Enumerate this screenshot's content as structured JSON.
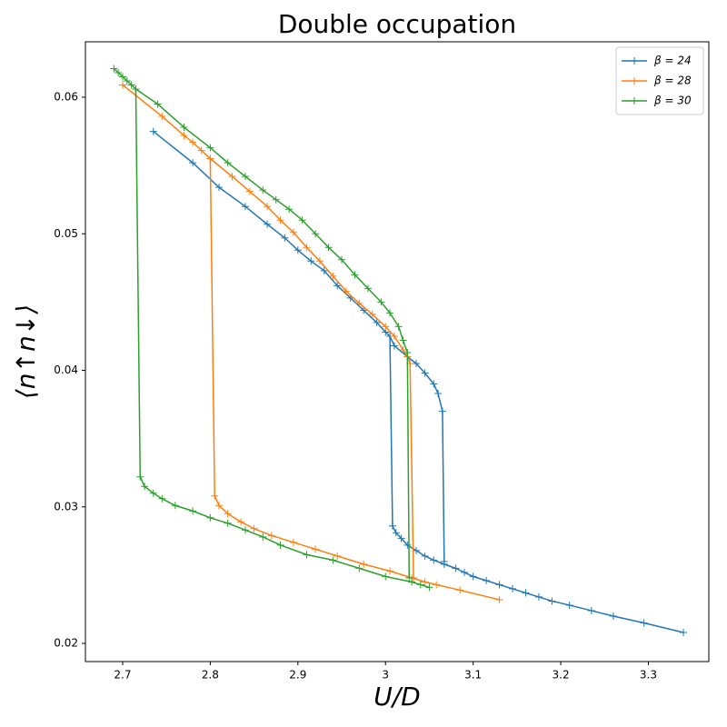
{
  "chart_data": {
    "type": "line",
    "title": "Double occupation",
    "x_label": "U/D",
    "y_label": "⟨n↑n↓⟩",
    "xlim": [
      2.6575,
      3.369
    ],
    "ylim": [
      0.01867,
      0.06406
    ],
    "xticks": [
      2.7,
      2.8,
      2.9,
      3.0,
      3.1,
      3.2,
      3.3
    ],
    "yticks": [
      0.02,
      0.03,
      0.04,
      0.05,
      0.06
    ],
    "legend": "upper right",
    "marker": "+",
    "series": [
      {
        "name": "β = 24",
        "color": "#1f77b4",
        "x": [
          3.34,
          3.295,
          3.26,
          3.235,
          3.21,
          3.19,
          3.175,
          3.16,
          3.145,
          3.13,
          3.115,
          3.1,
          3.09,
          3.08,
          3.067,
          3.055,
          3.045,
          3.035,
          3.025,
          3.018,
          3.012,
          3.008,
          3.005,
          3.0,
          2.99,
          2.975,
          2.96,
          2.945,
          2.93,
          2.915,
          2.9,
          2.885,
          2.865,
          2.84,
          2.81,
          2.78,
          2.735,
          null,
          3.005,
          3.01,
          3.025,
          3.035,
          3.045,
          3.055,
          3.06,
          3.065,
          3.067
        ],
        "values": [
          0.0208,
          0.0215,
          0.022,
          0.0224,
          0.0228,
          0.0231,
          0.0234,
          0.0237,
          0.024,
          0.0243,
          0.0246,
          0.0249,
          0.0252,
          0.0255,
          0.0258,
          0.0261,
          0.0264,
          0.0268,
          0.0272,
          0.0277,
          0.0281,
          0.0286,
          0.0425,
          0.0428,
          0.0435,
          0.0444,
          0.0453,
          0.0462,
          0.0473,
          0.048,
          0.0488,
          0.0497,
          0.0507,
          0.052,
          0.0534,
          0.0552,
          0.0575,
          null,
          0.0425,
          0.0418,
          0.041,
          0.0405,
          0.0398,
          0.039,
          0.0383,
          0.037,
          0.026
        ]
      },
      {
        "name": "β = 28",
        "color": "#ff7f0e",
        "x": [
          3.13,
          3.085,
          3.058,
          3.045,
          3.03,
          3.005,
          2.975,
          2.945,
          2.92,
          2.895,
          2.87,
          2.85,
          2.835,
          2.82,
          2.81,
          2.805,
          2.8,
          2.79,
          2.78,
          2.77,
          2.745,
          2.7,
          null,
          2.8,
          2.825,
          2.845,
          2.865,
          2.88,
          2.895,
          2.91,
          2.925,
          2.94,
          2.955,
          2.97,
          2.985,
          3.0,
          3.01,
          3.02,
          3.025,
          3.028,
          3.032
        ],
        "values": [
          0.0232,
          0.0239,
          0.0243,
          0.0245,
          0.0248,
          0.0253,
          0.0258,
          0.0264,
          0.0269,
          0.0274,
          0.0279,
          0.0284,
          0.0289,
          0.0295,
          0.0301,
          0.0308,
          0.0555,
          0.0561,
          0.0567,
          0.0572,
          0.0586,
          0.0609,
          null,
          0.0555,
          0.0542,
          0.0531,
          0.052,
          0.051,
          0.0501,
          0.049,
          0.048,
          0.0469,
          0.0458,
          0.0449,
          0.0441,
          0.0432,
          0.0425,
          0.0415,
          0.041,
          0.0405,
          0.0248
        ]
      },
      {
        "name": "β = 30",
        "color": "#2ca02c",
        "x": [
          3.05,
          3.04,
          3.03,
          3.0,
          2.97,
          2.94,
          2.91,
          2.88,
          2.86,
          2.84,
          2.82,
          2.8,
          2.78,
          2.76,
          2.745,
          2.735,
          2.725,
          2.72,
          2.715,
          2.71,
          2.705,
          2.7,
          2.695,
          2.69,
          null,
          2.715,
          2.74,
          2.77,
          2.8,
          2.82,
          2.84,
          2.86,
          2.875,
          2.89,
          2.905,
          2.92,
          2.935,
          2.95,
          2.965,
          2.98,
          2.995,
          3.005,
          3.015,
          3.02,
          3.025,
          3.027
        ],
        "values": [
          0.0241,
          0.0243,
          0.0245,
          0.0249,
          0.0255,
          0.0261,
          0.0265,
          0.0272,
          0.0278,
          0.0283,
          0.0288,
          0.0292,
          0.0297,
          0.0301,
          0.0306,
          0.031,
          0.0315,
          0.0322,
          0.0606,
          0.0609,
          0.0612,
          0.0615,
          0.0618,
          0.0621,
          null,
          0.0606,
          0.0595,
          0.0578,
          0.0563,
          0.0552,
          0.0542,
          0.0532,
          0.0525,
          0.0518,
          0.051,
          0.05,
          0.049,
          0.0481,
          0.047,
          0.046,
          0.045,
          0.0442,
          0.0432,
          0.0422,
          0.0413,
          0.0248
        ]
      }
    ]
  }
}
